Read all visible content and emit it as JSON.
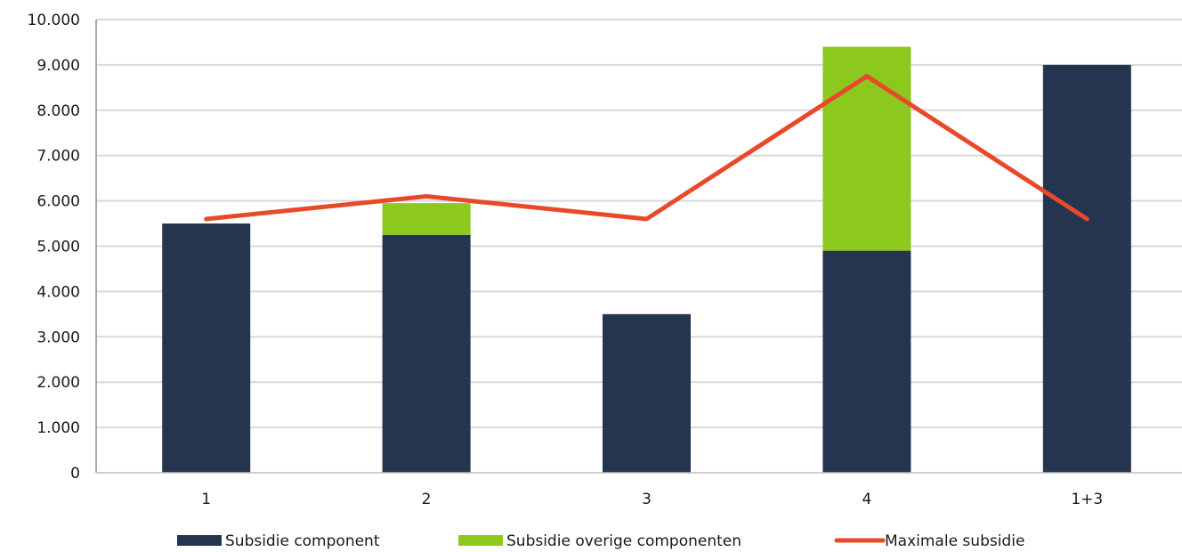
{
  "chart_data": {
    "type": "bar",
    "stacked": true,
    "categories": [
      "1",
      "2",
      "3",
      "4",
      "1+3"
    ],
    "series": [
      {
        "name": "Subsidie component",
        "type": "bar",
        "color": "#253550",
        "values": [
          5500,
          5250,
          3500,
          4900,
          9000
        ]
      },
      {
        "name": "Subsidie overige componenten",
        "type": "bar",
        "color": "#8dc81e",
        "values": [
          0,
          700,
          0,
          4500,
          0
        ]
      },
      {
        "name": "Maximale subsidie",
        "type": "line",
        "color": "#e8492a",
        "values": [
          5600,
          6100,
          5600,
          8750,
          5600
        ]
      }
    ],
    "ylim": [
      0,
      10000
    ],
    "yticks": [
      0,
      1000,
      2000,
      3000,
      4000,
      5000,
      6000,
      7000,
      8000,
      9000,
      10000
    ],
    "ytick_labels": [
      "0",
      "1.000",
      "2.000",
      "3.000",
      "4.000",
      "5.000",
      "6.000",
      "7.000",
      "8.000",
      "9.000",
      "10.000"
    ],
    "grid": true,
    "legend_position": "bottom"
  }
}
